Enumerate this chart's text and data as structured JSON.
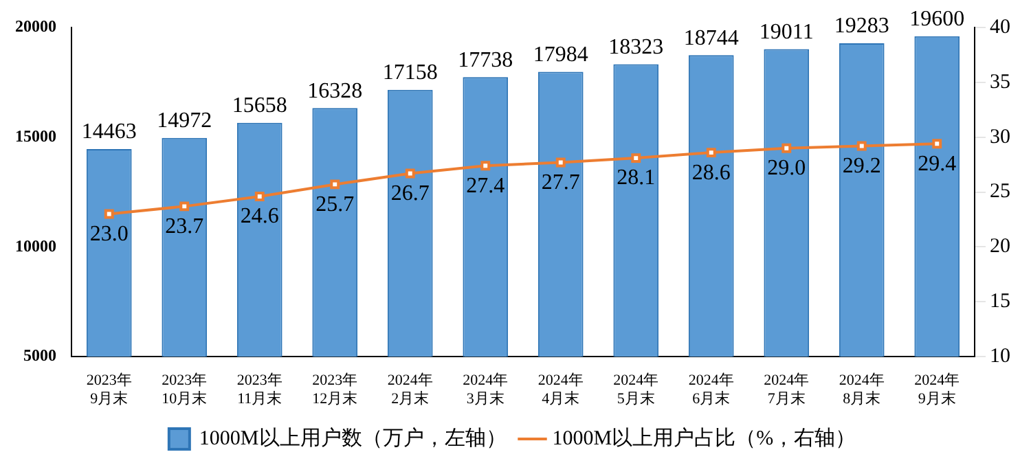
{
  "chart_data": {
    "type": "bar",
    "categories": [
      "2023年9月末",
      "2023年10月末",
      "2023年11月末",
      "2023年12月末",
      "2024年2月末",
      "2024年3月末",
      "2024年4月末",
      "2024年5月末",
      "2024年6月末",
      "2024年7月末",
      "2024年8月末",
      "2024年9月末"
    ],
    "series": [
      {
        "name": "1000M以上用户数（万户，左轴）",
        "color": "#5b9bd5",
        "values": [
          14463,
          14972,
          15658,
          16328,
          17158,
          17738,
          17984,
          18323,
          18744,
          19011,
          19283,
          19600
        ]
      },
      {
        "name": "1000M以上用户占比（%，右轴）",
        "type": "line",
        "axis": "y2",
        "color": "#ed7d31",
        "values": [
          23.0,
          23.7,
          24.6,
          25.7,
          26.7,
          27.4,
          27.7,
          28.1,
          28.6,
          29.0,
          29.2,
          29.4
        ],
        "value_labels": [
          "23.0",
          "23.7",
          "24.6",
          "25.7",
          "26.7",
          "27.4",
          "27.7",
          "28.1",
          "28.6",
          "29.0",
          "29.2",
          "29.4"
        ]
      }
    ],
    "ylim": [
      5000,
      20000
    ],
    "yticks": [
      5000,
      10000,
      15000,
      20000
    ],
    "y2lim": [
      10,
      40
    ],
    "y2ticks": [
      10,
      15,
      20,
      25,
      30,
      35,
      40
    ],
    "data_labels": true,
    "legend": "bottom",
    "marker": "square",
    "grid": false
  }
}
